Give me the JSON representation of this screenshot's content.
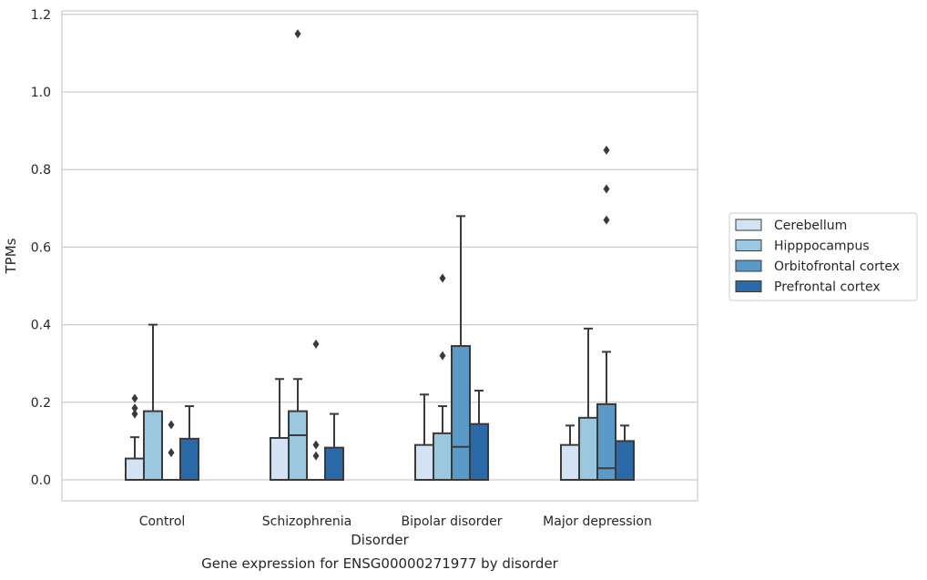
{
  "chart_data": {
    "type": "boxplot",
    "title": "",
    "caption": "Gene expression for ENSG00000271977 by disorder",
    "xlabel": "Disorder",
    "ylabel": "TPMs",
    "ylim": [
      -0.055,
      1.21
    ],
    "yticks": [
      0.0,
      0.2,
      0.4,
      0.6,
      0.8,
      1.0,
      1.2
    ],
    "grid": "horizontal",
    "legend_placement": "right-center",
    "categories": [
      "Control",
      "Schizophrenia",
      "Bipolar disorder",
      "Major depression"
    ],
    "series": [
      {
        "name": "Cerebellum",
        "color": "#d2e3f3",
        "boxes": [
          {
            "q1": 0.0,
            "median": 0.0,
            "q3": 0.055,
            "whisker_low": 0.0,
            "whisker_high": 0.11,
            "outliers": [
              0.17,
              0.185,
              0.21
            ]
          },
          {
            "q1": 0.0,
            "median": 0.0,
            "q3": 0.108,
            "whisker_low": 0.0,
            "whisker_high": 0.26,
            "outliers": []
          },
          {
            "q1": 0.0,
            "median": 0.0,
            "q3": 0.09,
            "whisker_low": 0.0,
            "whisker_high": 0.22,
            "outliers": []
          },
          {
            "q1": 0.0,
            "median": 0.0,
            "q3": 0.09,
            "whisker_low": 0.0,
            "whisker_high": 0.14,
            "outliers": []
          }
        ]
      },
      {
        "name": "Hipppocampus",
        "color": "#9ac8e0",
        "boxes": [
          {
            "q1": 0.0,
            "median": 0.0,
            "q3": 0.177,
            "whisker_low": 0.0,
            "whisker_high": 0.4,
            "outliers": []
          },
          {
            "q1": 0.0,
            "median": 0.115,
            "q3": 0.177,
            "whisker_low": 0.0,
            "whisker_high": 0.26,
            "outliers": [
              1.15
            ]
          },
          {
            "q1": 0.0,
            "median": 0.0,
            "q3": 0.12,
            "whisker_low": 0.0,
            "whisker_high": 0.19,
            "outliers": [
              0.32,
              0.52
            ]
          },
          {
            "q1": 0.0,
            "median": 0.0,
            "q3": 0.16,
            "whisker_low": 0.0,
            "whisker_high": 0.39,
            "outliers": []
          }
        ]
      },
      {
        "name": "Orbitofrontal cortex",
        "color": "#5a9ac8",
        "boxes": [
          {
            "q1": 0.0,
            "median": 0.0,
            "q3": 0.0,
            "whisker_low": 0.0,
            "whisker_high": 0.0,
            "outliers": [
              0.07,
              0.142
            ]
          },
          {
            "q1": 0.0,
            "median": 0.0,
            "q3": 0.0,
            "whisker_low": 0.0,
            "whisker_high": 0.0,
            "outliers": [
              0.062,
              0.09,
              0.35
            ]
          },
          {
            "q1": 0.0,
            "median": 0.085,
            "q3": 0.345,
            "whisker_low": 0.0,
            "whisker_high": 0.68,
            "outliers": []
          },
          {
            "q1": 0.0,
            "median": 0.03,
            "q3": 0.195,
            "whisker_low": 0.0,
            "whisker_high": 0.33,
            "outliers": [
              0.67,
              0.75,
              0.85
            ]
          }
        ]
      },
      {
        "name": "Prefrontal cortex",
        "color": "#2b6aa8",
        "boxes": [
          {
            "q1": 0.0,
            "median": 0.0,
            "q3": 0.106,
            "whisker_low": 0.0,
            "whisker_high": 0.19,
            "outliers": []
          },
          {
            "q1": 0.0,
            "median": 0.0,
            "q3": 0.083,
            "whisker_low": 0.0,
            "whisker_high": 0.17,
            "outliers": []
          },
          {
            "q1": 0.0,
            "median": 0.0,
            "q3": 0.144,
            "whisker_low": 0.0,
            "whisker_high": 0.23,
            "outliers": []
          },
          {
            "q1": 0.0,
            "median": 0.0,
            "q3": 0.1,
            "whisker_low": 0.0,
            "whisker_high": 0.14,
            "outliers": []
          }
        ]
      }
    ]
  }
}
